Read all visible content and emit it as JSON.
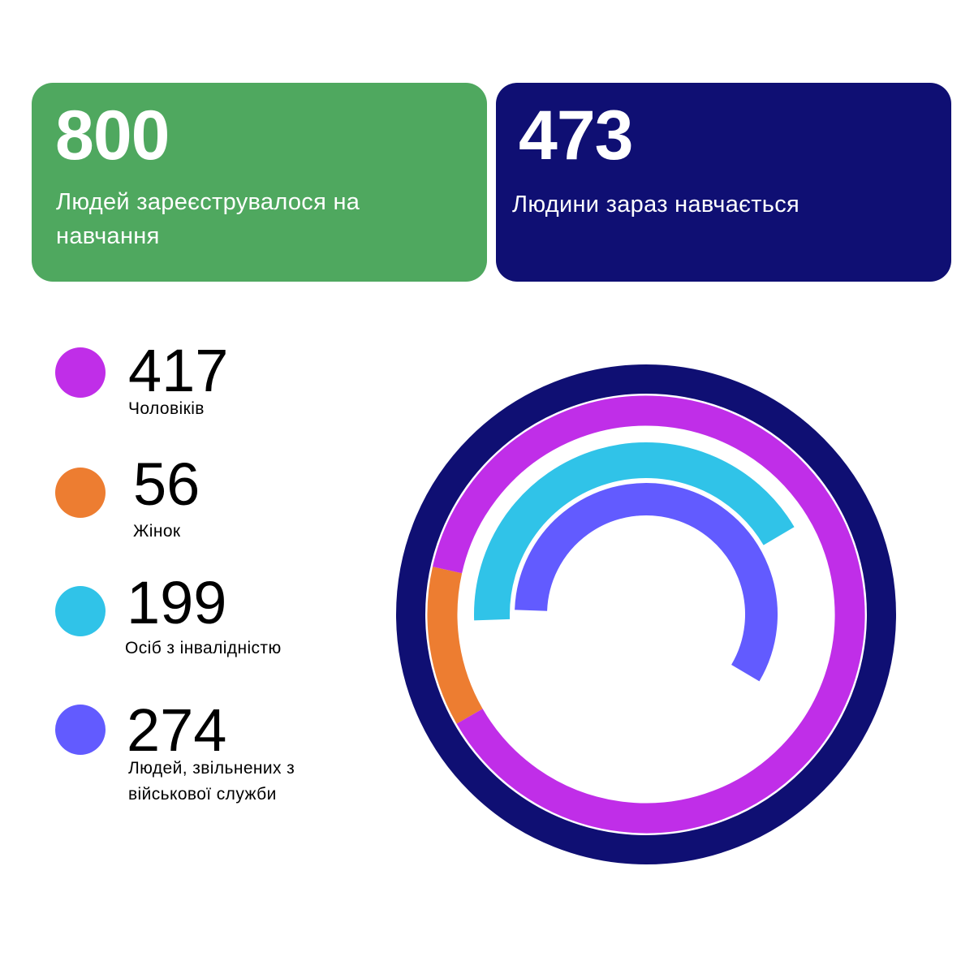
{
  "cards": [
    {
      "number": "800",
      "label": "Людей зареєструвалося на навчання",
      "color": "#4fa85f"
    },
    {
      "number": "473",
      "label": "Людини зараз навчається",
      "color": "#0f0f73"
    }
  ],
  "legend": [
    {
      "number": "417",
      "label": "Чоловіків",
      "color": "#c02ee8"
    },
    {
      "number": "56",
      "label": "Жінок",
      "color": "#ed7d31"
    },
    {
      "number": "199",
      "label": "Осіб з інвалідністю",
      "color": "#30c3e8"
    },
    {
      "number": "274",
      "label": "Людей, звільнених з військової служби",
      "color": "#625bff"
    }
  ],
  "chart_data": {
    "type": "radial-bar",
    "total": 473,
    "total_color": "#0f0f73",
    "series": [
      {
        "name": "Чоловіків",
        "value": 417,
        "color": "#c02ee8"
      },
      {
        "name": "Жінок",
        "value": 56,
        "color": "#ed7d31"
      },
      {
        "name": "Осіб з інвалідністю",
        "value": 199,
        "color": "#30c3e8"
      },
      {
        "name": "Людей, звільнених з військової служби",
        "value": 274,
        "color": "#625bff"
      }
    ]
  }
}
